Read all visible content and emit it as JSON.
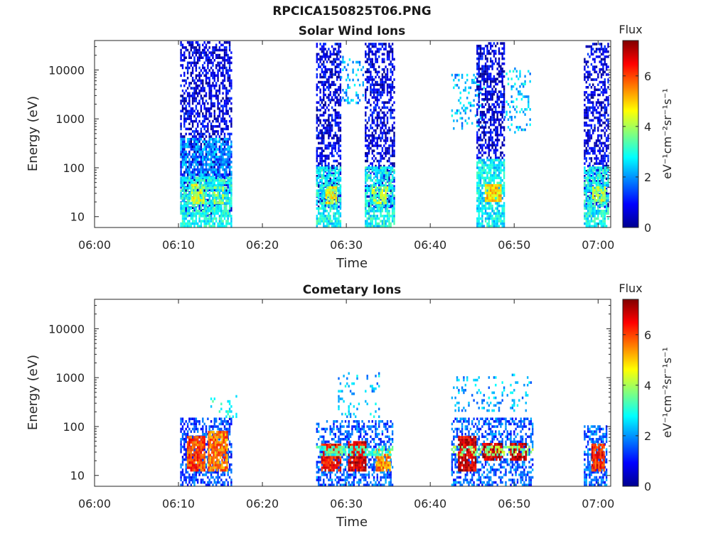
{
  "figure": {
    "title": "RPCICA150825T06.PNG"
  },
  "colorbar": {
    "label": "Flux",
    "unit_text": "eV⁻¹cm⁻²sr⁻¹s⁻¹",
    "ticks": [
      0,
      2,
      4,
      6
    ],
    "range": [
      0,
      7.4
    ],
    "colormap": "jet"
  },
  "chart_data": [
    {
      "type": "heatmap",
      "title": "Solar Wind Ions",
      "xlabel": "Time",
      "ylabel": "Energy (eV)",
      "x_ticks": [
        "06:00",
        "06:10",
        "06:20",
        "06:30",
        "06:40",
        "06:50",
        "07:00"
      ],
      "x_range_minutes": [
        0,
        61.5
      ],
      "y_scale": "log",
      "y_ticks": [
        10,
        100,
        1000,
        10000
      ],
      "y_range": [
        6,
        40000
      ],
      "flux_range": [
        0,
        7.4
      ],
      "blobs": [
        {
          "t0": 10.2,
          "t1": 16.3,
          "e0": 10,
          "e1": 40000,
          "flux": 0.7,
          "density": 0.55
        },
        {
          "t0": 10.2,
          "t1": 16.3,
          "e0": 60,
          "e1": 400,
          "flux": 2.0,
          "density": 0.6
        },
        {
          "t0": 10.2,
          "t1": 16.3,
          "e0": 6,
          "e1": 60,
          "flux": 2.9,
          "density": 0.8
        },
        {
          "t0": 11.5,
          "t1": 13.0,
          "e0": 18,
          "e1": 45,
          "flux": 4.3,
          "density": 0.7
        },
        {
          "t0": 14.2,
          "t1": 15.3,
          "e0": 18,
          "e1": 40,
          "flux": 3.8,
          "density": 0.6
        },
        {
          "t0": 26.4,
          "t1": 29.3,
          "e0": 15,
          "e1": 40000,
          "flux": 0.7,
          "density": 0.55
        },
        {
          "t0": 26.4,
          "t1": 29.3,
          "e0": 6,
          "e1": 100,
          "flux": 2.8,
          "density": 0.75
        },
        {
          "t0": 27.5,
          "t1": 28.8,
          "e0": 18,
          "e1": 40,
          "flux": 4.5,
          "density": 0.8
        },
        {
          "t0": 29.3,
          "t1": 32.0,
          "e0": 2000,
          "e1": 20000,
          "flux": 2.2,
          "density": 0.2
        },
        {
          "t0": 32.2,
          "t1": 35.8,
          "e0": 15,
          "e1": 40000,
          "flux": 0.7,
          "density": 0.55
        },
        {
          "t0": 32.2,
          "t1": 35.8,
          "e0": 6,
          "e1": 100,
          "flux": 2.8,
          "density": 0.75
        },
        {
          "t0": 33.0,
          "t1": 35.0,
          "e0": 18,
          "e1": 40,
          "flux": 4.0,
          "density": 0.6
        },
        {
          "t0": 42.5,
          "t1": 46.5,
          "e0": 600,
          "e1": 8000,
          "flux": 2.3,
          "density": 0.2
        },
        {
          "t0": 45.5,
          "t1": 48.8,
          "e0": 150,
          "e1": 40000,
          "flux": 0.7,
          "density": 0.55
        },
        {
          "t0": 45.5,
          "t1": 48.8,
          "e0": 6,
          "e1": 150,
          "flux": 2.7,
          "density": 0.8
        },
        {
          "t0": 46.5,
          "t1": 48.4,
          "e0": 20,
          "e1": 45,
          "flux": 4.9,
          "density": 0.9
        },
        {
          "t0": 48.8,
          "t1": 52.0,
          "e0": 500,
          "e1": 10000,
          "flux": 2.4,
          "density": 0.2
        },
        {
          "t0": 58.3,
          "t1": 61.2,
          "e0": 15,
          "e1": 40000,
          "flux": 0.7,
          "density": 0.55
        },
        {
          "t0": 58.3,
          "t1": 61.2,
          "e0": 6,
          "e1": 100,
          "flux": 2.8,
          "density": 0.75
        },
        {
          "t0": 59.3,
          "t1": 60.8,
          "e0": 18,
          "e1": 40,
          "flux": 4.2,
          "density": 0.7
        }
      ]
    },
    {
      "type": "heatmap",
      "title": "Cometary Ions",
      "xlabel": "Time",
      "ylabel": "Energy (eV)",
      "x_ticks": [
        "06:00",
        "06:10",
        "06:20",
        "06:30",
        "06:40",
        "06:50",
        "07:00"
      ],
      "x_range_minutes": [
        0,
        61.5
      ],
      "y_scale": "log",
      "y_ticks": [
        10,
        100,
        1000,
        10000
      ],
      "y_range": [
        6,
        40000
      ],
      "flux_range": [
        0,
        7.4
      ],
      "blobs": [
        {
          "t0": 10.2,
          "t1": 16.3,
          "e0": 6,
          "e1": 150,
          "flux": 1.4,
          "density": 0.55
        },
        {
          "t0": 11.0,
          "t1": 13.0,
          "e0": 12,
          "e1": 60,
          "flux": 6.0,
          "density": 0.9
        },
        {
          "t0": 13.5,
          "t1": 15.8,
          "e0": 12,
          "e1": 80,
          "flux": 5.6,
          "density": 0.85
        },
        {
          "t0": 13.8,
          "t1": 16.8,
          "e0": 150,
          "e1": 400,
          "flux": 3.0,
          "density": 0.15
        },
        {
          "t0": 26.4,
          "t1": 35.6,
          "e0": 6,
          "e1": 120,
          "flux": 1.6,
          "density": 0.5
        },
        {
          "t0": 27.0,
          "t1": 29.2,
          "e0": 12,
          "e1": 40,
          "flux": 6.4,
          "density": 0.9
        },
        {
          "t0": 30.2,
          "t1": 32.2,
          "e0": 12,
          "e1": 50,
          "flux": 6.7,
          "density": 0.9
        },
        {
          "t0": 33.5,
          "t1": 35.2,
          "e0": 12,
          "e1": 35,
          "flux": 5.5,
          "density": 0.85
        },
        {
          "t0": 26.4,
          "t1": 35.5,
          "e0": 25,
          "e1": 40,
          "flux": 3.2,
          "density": 0.6
        },
        {
          "t0": 29.0,
          "t1": 34.0,
          "e0": 150,
          "e1": 1200,
          "flux": 2.3,
          "density": 0.15
        },
        {
          "t0": 42.5,
          "t1": 52.2,
          "e0": 6,
          "e1": 150,
          "flux": 1.6,
          "density": 0.5
        },
        {
          "t0": 43.3,
          "t1": 45.5,
          "e0": 12,
          "e1": 60,
          "flux": 6.8,
          "density": 0.9
        },
        {
          "t0": 46.2,
          "t1": 48.5,
          "e0": 20,
          "e1": 45,
          "flux": 6.9,
          "density": 0.9
        },
        {
          "t0": 49.5,
          "t1": 51.5,
          "e0": 20,
          "e1": 45,
          "flux": 7.0,
          "density": 0.9
        },
        {
          "t0": 42.5,
          "t1": 52.2,
          "e0": 25,
          "e1": 40,
          "flux": 3.8,
          "density": 0.5
        },
        {
          "t0": 42.5,
          "t1": 52.0,
          "e0": 200,
          "e1": 1200,
          "flux": 2.2,
          "density": 0.15
        },
        {
          "t0": 58.3,
          "t1": 61.0,
          "e0": 6,
          "e1": 100,
          "flux": 1.6,
          "density": 0.55
        },
        {
          "t0": 59.2,
          "t1": 60.8,
          "e0": 12,
          "e1": 40,
          "flux": 6.3,
          "density": 0.9
        }
      ]
    }
  ]
}
